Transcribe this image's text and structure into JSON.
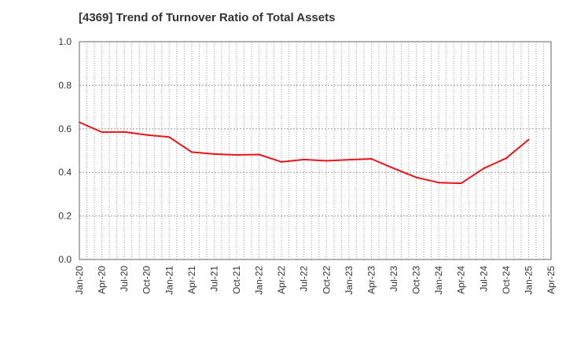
{
  "chart_data": {
    "type": "line",
    "title": "[4369]  Trend of Turnover Ratio of Total Assets",
    "xlabel": "",
    "ylabel": "",
    "ylim": [
      0,
      1.0
    ],
    "y_ticks": [
      "0.0",
      "0.2",
      "0.4",
      "0.6",
      "0.8",
      "1.0"
    ],
    "x_ticks": [
      "Jan-20",
      "Apr-20",
      "Jul-20",
      "Oct-20",
      "Jan-21",
      "Apr-21",
      "Jul-21",
      "Oct-21",
      "Jan-22",
      "Apr-22",
      "Jul-22",
      "Oct-22",
      "Jan-23",
      "Apr-23",
      "Jul-23",
      "Oct-23",
      "Jan-24",
      "Apr-24",
      "Jul-24",
      "Oct-24",
      "Jan-25",
      "Apr-25"
    ],
    "grid": true,
    "series": [
      {
        "color": "#e8141c",
        "x": [
          "Jan-20",
          "Apr-20",
          "Jul-20",
          "Oct-20",
          "Jan-21",
          "Apr-21",
          "Jul-21",
          "Oct-21",
          "Jan-22",
          "Apr-22",
          "Jul-22",
          "Oct-22",
          "Jan-23",
          "Apr-23",
          "Jul-23",
          "Oct-23",
          "Jan-24",
          "Apr-24",
          "Jul-24",
          "Oct-24",
          "Jan-25"
        ],
        "values": [
          0.63,
          0.585,
          0.586,
          0.572,
          0.562,
          0.493,
          0.484,
          0.48,
          0.482,
          0.448,
          0.459,
          0.453,
          0.458,
          0.462,
          0.418,
          0.377,
          0.353,
          0.35,
          0.418,
          0.465,
          0.55
        ]
      }
    ]
  }
}
